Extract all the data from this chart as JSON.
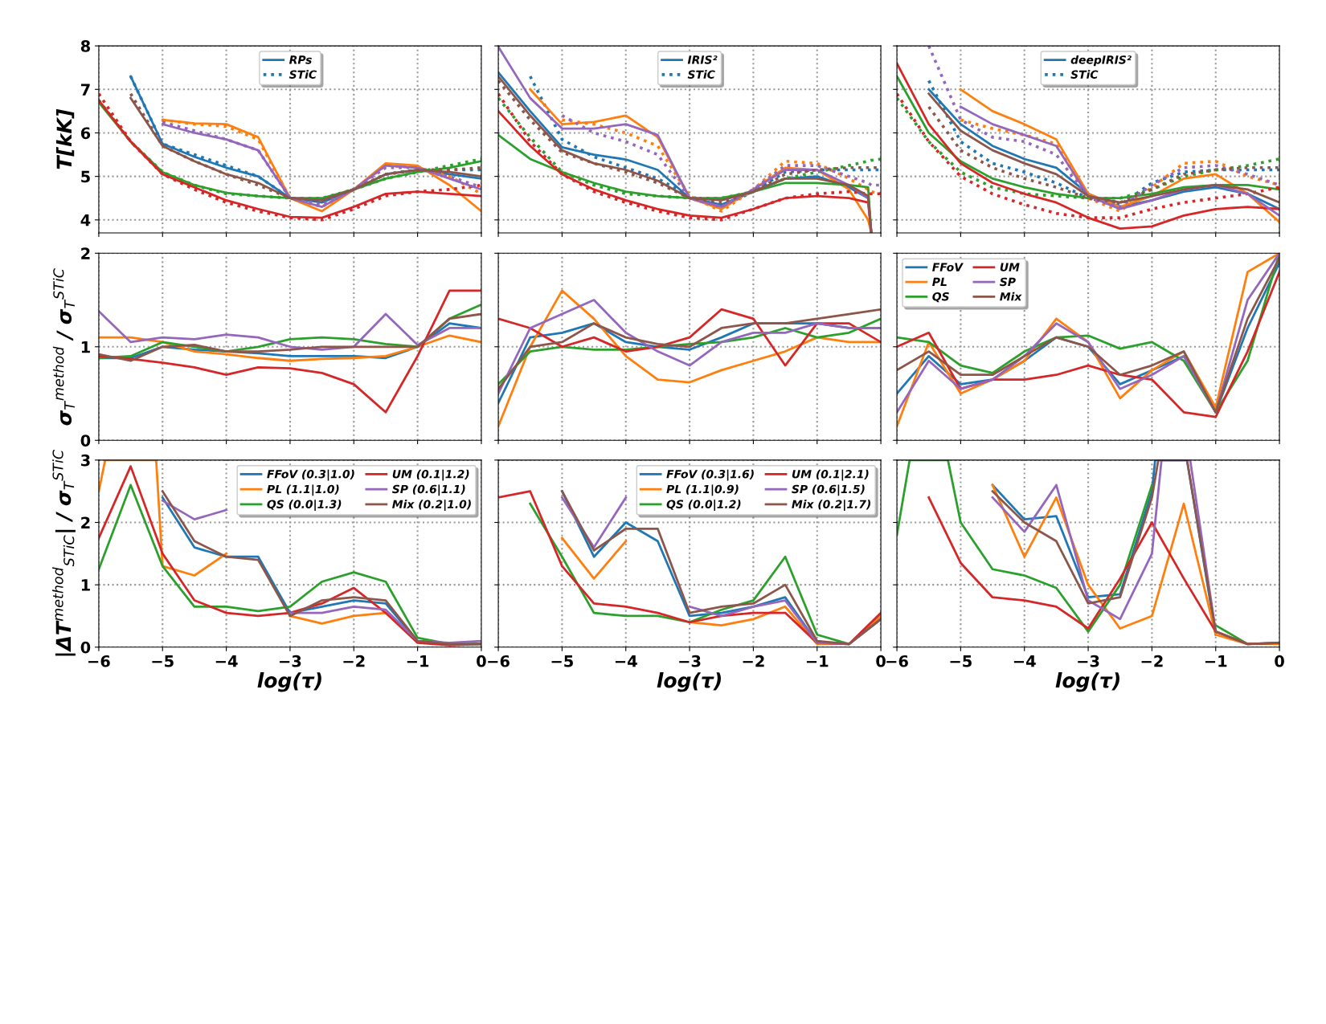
{
  "chart_data": [
    {
      "type": "line",
      "ylabel": "T[kK]",
      "x": [
        -6,
        -5.5,
        -5,
        -4.5,
        -4,
        -3.5,
        -3,
        -2.5,
        -2,
        -1.5,
        -1,
        -0.5,
        0
      ],
      "xlim": [
        -6,
        0
      ],
      "xticks": [
        -6,
        -5,
        -4,
        -3,
        -2,
        -1,
        0
      ],
      "ylim": [
        3.7,
        8
      ],
      "yticks": [
        4,
        5,
        6,
        7,
        8
      ],
      "grid": true,
      "legend": "top",
      "tick_labels": "y",
      "series": [
        {
          "name": "RPs",
          "color": "#1f77b4",
          "line_style": "solid",
          "values": [
            null,
            7.3,
            5.75,
            5.45,
            5.2,
            5.0,
            4.5,
            4.4,
            4.7,
            5.05,
            5.15,
            5.05,
            4.95
          ]
        },
        {
          "name": "STiC",
          "color": "#1f77b4",
          "line_style": "dotted",
          "values": [
            null,
            7.3,
            5.75,
            5.5,
            5.25,
            5.0,
            4.5,
            4.45,
            4.7,
            5.05,
            5.15,
            5.15,
            5.15
          ]
        },
        {
          "color": "#ff7f0e",
          "line_style": "solid",
          "values": [
            null,
            null,
            6.3,
            6.22,
            6.2,
            5.9,
            4.5,
            4.2,
            4.7,
            5.3,
            5.25,
            4.8,
            4.2
          ]
        },
        {
          "color": "#ff7f0e",
          "line_style": "dotted",
          "values": [
            null,
            null,
            6.3,
            6.2,
            6.15,
            5.85,
            4.5,
            4.3,
            4.7,
            5.25,
            5.2,
            5.0,
            4.6
          ]
        },
        {
          "color": "#2ca02c",
          "line_style": "solid",
          "values": [
            6.7,
            5.8,
            5.1,
            4.8,
            4.62,
            4.55,
            4.5,
            4.5,
            4.7,
            4.95,
            5.1,
            5.2,
            5.35
          ]
        },
        {
          "color": "#2ca02c",
          "line_style": "dotted",
          "values": [
            6.75,
            5.8,
            5.1,
            4.8,
            4.6,
            4.55,
            4.5,
            4.5,
            4.7,
            4.95,
            5.1,
            5.25,
            5.4
          ]
        },
        {
          "color": "#d62728",
          "line_style": "solid",
          "values": [
            6.75,
            5.8,
            5.05,
            4.75,
            4.45,
            4.25,
            4.07,
            4.05,
            4.3,
            4.6,
            4.65,
            4.6,
            4.55
          ]
        },
        {
          "color": "#d62728",
          "line_style": "dotted",
          "values": [
            6.9,
            5.8,
            5.05,
            4.7,
            4.4,
            4.2,
            4.05,
            4.0,
            4.25,
            4.55,
            4.65,
            4.7,
            4.8
          ]
        },
        {
          "color": "#9467bd",
          "line_style": "solid",
          "values": [
            null,
            null,
            6.2,
            6.0,
            5.85,
            5.6,
            4.5,
            4.3,
            4.7,
            5.25,
            5.2,
            4.95,
            4.7
          ]
        },
        {
          "color": "#9467bd",
          "line_style": "dotted",
          "values": [
            null,
            null,
            6.25,
            6.05,
            5.85,
            5.6,
            4.5,
            4.35,
            4.7,
            5.2,
            5.2,
            5.0,
            4.75
          ]
        },
        {
          "color": "#8c564b",
          "line_style": "solid",
          "values": [
            null,
            6.8,
            5.7,
            5.35,
            5.05,
            4.85,
            4.5,
            4.45,
            4.7,
            5.05,
            5.15,
            5.1,
            5.0
          ]
        },
        {
          "color": "#8c564b",
          "line_style": "dotted",
          "values": [
            null,
            6.9,
            5.7,
            5.35,
            5.05,
            4.8,
            4.5,
            4.45,
            4.7,
            5.05,
            5.15,
            5.15,
            5.2
          ]
        }
      ]
    },
    {
      "type": "line",
      "x": [
        -6,
        -5.5,
        -5,
        -4.5,
        -4,
        -3.5,
        -3,
        -2.5,
        -2,
        -1.5,
        -1,
        -0.5,
        -0.2,
        -0.15,
        0
      ],
      "xlim": [
        -6,
        0
      ],
      "xticks": [
        -6,
        -5,
        -4,
        -3,
        -2,
        -1,
        0
      ],
      "ylim": [
        3.7,
        8
      ],
      "yticks": [
        4,
        5,
        6,
        7,
        8
      ],
      "grid": true,
      "legend": "top",
      "tick_labels": false,
      "series": [
        {
          "name": "IRIS²",
          "color": "#1f77b4",
          "line_style": "solid",
          "values": [
            7.39,
            6.5,
            5.67,
            5.5,
            5.39,
            5.15,
            4.5,
            4.35,
            4.65,
            4.95,
            5.0,
            4.75,
            4.5,
            3.7,
            null
          ]
        },
        {
          "name": "STiC",
          "color": "#1f77b4",
          "line_style": "dotted",
          "values": [
            null,
            7.3,
            5.85,
            5.45,
            5.2,
            4.95,
            4.55,
            4.3,
            4.65,
            5.1,
            5.15,
            5.15,
            5.15,
            5.15,
            5.15
          ]
        },
        {
          "color": "#ff7f0e",
          "line_style": "solid",
          "values": [
            null,
            7.0,
            6.2,
            6.25,
            6.4,
            5.9,
            4.5,
            4.25,
            4.7,
            5.2,
            5.15,
            4.7,
            4.0,
            3.7,
            null
          ]
        },
        {
          "color": "#ff7f0e",
          "line_style": "dotted",
          "values": [
            null,
            null,
            6.3,
            6.2,
            6.0,
            5.7,
            4.55,
            4.2,
            4.7,
            5.35,
            5.3,
            4.95,
            4.7,
            4.65,
            4.6
          ]
        },
        {
          "color": "#2ca02c",
          "line_style": "solid",
          "values": [
            5.95,
            5.4,
            5.1,
            4.85,
            4.65,
            4.55,
            4.5,
            4.5,
            4.65,
            4.85,
            4.85,
            4.8,
            4.75,
            3.7,
            null
          ]
        },
        {
          "color": "#2ca02c",
          "line_style": "dotted",
          "values": [
            6.8,
            5.9,
            5.1,
            4.8,
            4.6,
            4.55,
            4.5,
            4.5,
            4.65,
            4.95,
            5.1,
            5.25,
            5.35,
            5.37,
            5.4
          ]
        },
        {
          "color": "#d62728",
          "line_style": "solid",
          "values": [
            6.5,
            5.7,
            5.05,
            4.7,
            4.45,
            4.25,
            4.1,
            4.05,
            4.25,
            4.5,
            4.55,
            4.5,
            4.4,
            3.7,
            null
          ]
        },
        {
          "color": "#d62728",
          "line_style": "dotted",
          "values": [
            6.9,
            5.8,
            5.05,
            4.65,
            4.4,
            4.2,
            4.05,
            4.0,
            4.25,
            4.5,
            4.6,
            4.65,
            4.6,
            4.6,
            4.6
          ]
        },
        {
          "color": "#9467bd",
          "line_style": "solid",
          "values": [
            7.98,
            6.8,
            6.1,
            6.1,
            6.2,
            5.95,
            4.5,
            4.3,
            4.7,
            5.15,
            5.15,
            4.8,
            4.5,
            3.7,
            null
          ]
        },
        {
          "color": "#9467bd",
          "line_style": "dotted",
          "values": [
            null,
            null,
            6.4,
            6.0,
            5.8,
            5.5,
            4.5,
            4.3,
            4.7,
            5.25,
            5.25,
            5.0,
            4.85,
            4.8,
            4.8
          ]
        },
        {
          "color": "#8c564b",
          "line_style": "solid",
          "values": [
            7.3,
            6.4,
            5.6,
            5.3,
            5.15,
            4.9,
            4.5,
            4.45,
            4.65,
            4.95,
            4.95,
            4.8,
            4.55,
            3.7,
            null
          ]
        },
        {
          "color": "#8c564b",
          "line_style": "dotted",
          "values": [
            7.2,
            6.3,
            5.55,
            5.3,
            5.1,
            4.85,
            4.5,
            4.4,
            4.65,
            5.05,
            5.15,
            5.2,
            5.2,
            5.2,
            5.2
          ]
        }
      ]
    },
    {
      "type": "line",
      "x": [
        -6,
        -5.5,
        -5,
        -4.5,
        -4,
        -3.5,
        -3,
        -2.5,
        -2,
        -1.5,
        -1,
        -0.5,
        0
      ],
      "xlim": [
        -6,
        0
      ],
      "xticks": [
        -6,
        -5,
        -4,
        -3,
        -2,
        -1,
        0
      ],
      "ylim": [
        3.7,
        8
      ],
      "yticks": [
        4,
        5,
        6,
        7,
        8
      ],
      "grid": true,
      "legend": "top",
      "tick_labels": false,
      "series": [
        {
          "name": "deepIRIS²",
          "color": "#1f77b4",
          "line_style": "solid",
          "values": [
            null,
            7.0,
            6.2,
            5.7,
            5.4,
            5.2,
            4.6,
            4.3,
            4.45,
            4.65,
            4.75,
            4.6,
            4.25
          ]
        },
        {
          "name": "STiC",
          "color": "#1f77b4",
          "line_style": "dotted",
          "values": [
            null,
            7.2,
            5.8,
            5.3,
            5.1,
            4.85,
            4.5,
            4.35,
            4.85,
            5.1,
            5.15,
            5.15,
            5.15
          ]
        },
        {
          "color": "#ff7f0e",
          "line_style": "solid",
          "values": [
            null,
            null,
            7.0,
            6.5,
            6.2,
            5.85,
            4.6,
            4.3,
            4.55,
            4.95,
            5.05,
            4.6,
            3.95
          ]
        },
        {
          "color": "#ff7f0e",
          "line_style": "dotted",
          "values": [
            null,
            null,
            6.3,
            6.1,
            5.95,
            5.75,
            4.5,
            4.2,
            4.75,
            5.3,
            5.35,
            5.0,
            4.8
          ]
        },
        {
          "color": "#2ca02c",
          "line_style": "solid",
          "values": [
            7.3,
            6.0,
            5.35,
            4.95,
            4.75,
            4.6,
            4.5,
            4.5,
            4.6,
            4.75,
            4.8,
            4.8,
            4.7
          ]
        },
        {
          "color": "#2ca02c",
          "line_style": "dotted",
          "values": [
            6.8,
            5.8,
            5.1,
            4.75,
            4.6,
            4.55,
            4.5,
            4.5,
            4.7,
            5.0,
            5.15,
            5.25,
            5.4
          ]
        },
        {
          "color": "#d62728",
          "line_style": "solid",
          "values": [
            7.6,
            6.2,
            5.3,
            4.85,
            4.6,
            4.4,
            4.05,
            3.8,
            3.85,
            4.1,
            4.25,
            4.3,
            4.25
          ]
        },
        {
          "color": "#d62728",
          "line_style": "dotted",
          "values": [
            6.9,
            5.8,
            5.0,
            4.6,
            4.35,
            4.15,
            4.05,
            4.05,
            4.25,
            4.4,
            4.5,
            4.6,
            4.75
          ]
        },
        {
          "color": "#9467bd",
          "line_style": "solid",
          "values": [
            null,
            null,
            6.6,
            6.2,
            5.95,
            5.7,
            4.55,
            4.25,
            4.45,
            4.7,
            4.8,
            4.6,
            4.1
          ]
        },
        {
          "color": "#9467bd",
          "line_style": "dotted",
          "values": [
            null,
            8.0,
            6.3,
            5.9,
            5.8,
            5.5,
            4.5,
            4.3,
            4.8,
            5.2,
            5.25,
            5.05,
            4.8
          ]
        },
        {
          "color": "#8c564b",
          "line_style": "solid",
          "values": [
            null,
            6.9,
            6.05,
            5.6,
            5.3,
            5.05,
            4.55,
            4.4,
            4.55,
            4.7,
            4.8,
            4.7,
            4.4
          ]
        },
        {
          "color": "#8c564b",
          "line_style": "dotted",
          "values": [
            null,
            6.6,
            5.6,
            5.2,
            4.95,
            4.75,
            4.5,
            4.4,
            4.7,
            5.05,
            5.15,
            5.2,
            5.2
          ]
        }
      ]
    },
    {
      "type": "line",
      "ylabel": "σ$_{T}$$^{method}$ / σ$_{T}$$^{STiC}$",
      "x": [
        -6,
        -5.5,
        -5,
        -4.5,
        -4,
        -3.5,
        -3,
        -2.5,
        -2,
        -1.5,
        -1,
        -0.5,
        0
      ],
      "xlim": [
        -6,
        0
      ],
      "xticks": [
        -6,
        -5,
        -4,
        -3,
        -2,
        -1,
        0
      ],
      "ylim": [
        0,
        2
      ],
      "yticks": [
        0,
        1,
        2
      ],
      "grid": true,
      "tick_labels": "y",
      "series": [
        {
          "color": "#1f77b4",
          "values": [
            0.88,
            0.88,
            1.0,
            0.97,
            0.95,
            0.93,
            0.9,
            0.9,
            0.9,
            0.88,
            1.0,
            1.25,
            1.2
          ]
        },
        {
          "color": "#ff7f0e",
          "values": [
            1.1,
            1.1,
            1.05,
            0.95,
            0.92,
            0.88,
            0.85,
            0.87,
            0.88,
            0.9,
            1.0,
            1.12,
            1.05
          ]
        },
        {
          "color": "#2ca02c",
          "values": [
            0.88,
            0.9,
            1.05,
            1.0,
            0.95,
            1.0,
            1.08,
            1.1,
            1.08,
            1.03,
            1.0,
            1.3,
            1.45
          ]
        },
        {
          "color": "#d62728",
          "values": [
            0.9,
            0.87,
            0.83,
            0.78,
            0.7,
            0.78,
            0.77,
            0.72,
            0.6,
            0.3,
            0.9,
            1.6,
            1.6
          ]
        },
        {
          "color": "#9467bd",
          "values": [
            1.38,
            1.05,
            1.1,
            1.08,
            1.13,
            1.1,
            1.0,
            0.97,
            1.0,
            1.35,
            1.02,
            1.2,
            1.2
          ]
        },
        {
          "color": "#8c564b",
          "values": [
            0.92,
            0.85,
            1.0,
            1.02,
            0.95,
            0.95,
            0.97,
            1.0,
            1.0,
            1.0,
            1.0,
            1.3,
            1.35
          ]
        }
      ]
    },
    {
      "type": "line",
      "x": [
        -6,
        -5.5,
        -5,
        -4.5,
        -4,
        -3.5,
        -3,
        -2.5,
        -2,
        -1.5,
        -1,
        -0.5,
        0
      ],
      "xlim": [
        -6,
        0
      ],
      "xticks": [
        -6,
        -5,
        -4,
        -3,
        -2,
        -1,
        0
      ],
      "ylim": [
        0,
        2
      ],
      "yticks": [
        0,
        1,
        2
      ],
      "grid": true,
      "tick_labels": false,
      "series": [
        {
          "color": "#1f77b4",
          "values": [
            0.4,
            1.1,
            1.15,
            1.25,
            1.05,
            1.0,
            0.97,
            1.1,
            1.25,
            1.25,
            1.25,
            1.2,
            1.2
          ]
        },
        {
          "color": "#ff7f0e",
          "values": [
            0.15,
            1.0,
            1.6,
            1.3,
            0.9,
            0.65,
            0.62,
            0.75,
            0.85,
            0.95,
            1.1,
            1.05,
            1.05
          ]
        },
        {
          "color": "#2ca02c",
          "values": [
            0.6,
            0.95,
            1.0,
            0.97,
            0.97,
            1.0,
            1.03,
            1.05,
            1.1,
            1.2,
            1.1,
            1.15,
            1.3
          ]
        },
        {
          "color": "#d62728",
          "values": [
            1.3,
            1.2,
            1.0,
            1.1,
            0.95,
            1.0,
            1.1,
            1.4,
            1.3,
            0.8,
            1.25,
            1.25,
            1.05
          ]
        },
        {
          "color": "#9467bd",
          "values": [
            0.5,
            1.2,
            1.35,
            1.5,
            1.15,
            0.95,
            0.8,
            1.05,
            1.15,
            1.15,
            1.25,
            1.2,
            1.2
          ]
        },
        {
          "color": "#8c564b",
          "values": [
            0.55,
            1.0,
            1.05,
            1.25,
            1.1,
            1.03,
            1.0,
            1.2,
            1.25,
            1.25,
            1.3,
            1.35,
            1.4
          ]
        }
      ]
    },
    {
      "type": "line",
      "x": [
        -6,
        -5.5,
        -5,
        -4.5,
        -4,
        -3.5,
        -3,
        -2.5,
        -2,
        -1.5,
        -1,
        -0.5,
        0
      ],
      "xlim": [
        -6,
        0
      ],
      "xticks": [
        -6,
        -5,
        -4,
        -3,
        -2,
        -1,
        0
      ],
      "ylim": [
        0,
        2
      ],
      "yticks": [
        0,
        1,
        2
      ],
      "grid": true,
      "legend": "top left",
      "tick_labels": false,
      "series": [
        {
          "name": "FFoV",
          "color": "#1f77b4",
          "values": [
            0.5,
            0.9,
            0.6,
            0.65,
            0.85,
            1.1,
            1.0,
            0.6,
            0.75,
            0.9,
            0.3,
            1.2,
            1.9
          ]
        },
        {
          "name": "PL",
          "color": "#ff7f0e",
          "values": [
            0.15,
            1.05,
            0.5,
            0.65,
            0.85,
            1.3,
            1.05,
            0.45,
            0.75,
            0.95,
            0.35,
            1.8,
            2.0
          ]
        },
        {
          "name": "QS",
          "color": "#2ca02c",
          "values": [
            1.1,
            1.05,
            0.8,
            0.72,
            0.95,
            1.1,
            1.12,
            0.98,
            1.05,
            0.85,
            0.3,
            0.85,
            2.0
          ]
        },
        {
          "name": "UM",
          "color": "#d62728",
          "values": [
            1.0,
            1.15,
            0.55,
            0.65,
            0.65,
            0.7,
            0.8,
            0.7,
            0.65,
            0.3,
            0.25,
            0.95,
            1.8
          ]
        },
        {
          "name": "SP",
          "color": "#9467bd",
          "values": [
            0.3,
            0.85,
            0.55,
            0.65,
            0.9,
            1.25,
            1.05,
            0.55,
            0.7,
            0.9,
            0.3,
            1.5,
            2.0
          ]
        },
        {
          "name": "Mix",
          "color": "#8c564b",
          "values": [
            0.75,
            0.95,
            0.7,
            0.7,
            0.9,
            1.1,
            1.0,
            0.7,
            0.8,
            0.95,
            0.3,
            1.3,
            1.95
          ]
        }
      ]
    },
    {
      "type": "line",
      "ylabel": "|ΔT$^{method}$$_{STiC}$| / σ$_{T}$$^{STiC}$",
      "xlabel": "log(τ)",
      "x": [
        -6,
        -5.5,
        -5,
        -4.5,
        -4,
        -3.5,
        -3,
        -2.5,
        -2,
        -1.5,
        -1,
        -0.5,
        0
      ],
      "xlim": [
        -6,
        0
      ],
      "xticks": [
        {
          "value": -6,
          "label": "−6"
        },
        {
          "value": -5,
          "label": "−5"
        },
        {
          "value": -4,
          "label": "−4"
        },
        {
          "value": -3,
          "label": "−3"
        },
        {
          "value": -2,
          "label": "−2"
        },
        {
          "value": -1,
          "label": "−1"
        },
        0
      ],
      "ylim": [
        0,
        3
      ],
      "yticks": [
        0,
        1,
        2,
        3
      ],
      "grid": true,
      "legend": "top right",
      "series": [
        {
          "name": "FFoV (0.3|1.0)",
          "color": "#1f77b4",
          "values": [
            null,
            null,
            2.4,
            1.6,
            1.45,
            1.45,
            0.55,
            0.65,
            0.75,
            0.7,
            0.1,
            0.05,
            0.05
          ]
        },
        {
          "name": "PL (1.1|1.0)",
          "color": "#ff7f0e",
          "x": [
            -6,
            -5.9,
            -5.1,
            -5,
            -4.5,
            -4,
            -3.5,
            -3,
            -2.5,
            -2,
            -1.5,
            -1
          ],
          "values": [
            2.5,
            3,
            3,
            1.3,
            1.15,
            1.5,
            null,
            0.5,
            0.38,
            0.5,
            0.55,
            0.1
          ]
        },
        {
          "name": "QS (0.0|1.3)",
          "color": "#2ca02c",
          "values": [
            1.25,
            2.6,
            1.3,
            0.65,
            0.65,
            0.58,
            0.65,
            1.05,
            1.2,
            1.05,
            0.15,
            0.05,
            0.05
          ]
        },
        {
          "name": "UM (0.1|1.2)",
          "color": "#d62728",
          "values": [
            1.75,
            2.9,
            1.5,
            0.75,
            0.55,
            0.5,
            0.55,
            0.7,
            0.95,
            0.55,
            0.07,
            0.03,
            0.05
          ]
        },
        {
          "name": "SP (0.6|1.1)",
          "color": "#9467bd",
          "values": [
            null,
            null,
            2.35,
            2.05,
            2.2,
            null,
            0.55,
            0.55,
            0.65,
            0.6,
            0.1,
            0.07,
            0.1
          ]
        },
        {
          "name": "Mix (0.2|1.0)",
          "color": "#8c564b",
          "values": [
            null,
            null,
            2.5,
            1.7,
            1.45,
            1.4,
            0.5,
            0.75,
            0.8,
            0.75,
            0.1,
            0.05,
            0.05
          ]
        }
      ]
    },
    {
      "type": "line",
      "xlabel": "log(τ)",
      "x": [
        -6,
        -5.5,
        -5,
        -4.5,
        -4,
        -3.5,
        -3,
        -2.5,
        -2,
        -1.5,
        -1,
        -0.5,
        0
      ],
      "xlim": [
        -6,
        0
      ],
      "xticks": [
        {
          "value": -6,
          "label": "−6"
        },
        {
          "value": -5,
          "label": "−5"
        },
        {
          "value": -4,
          "label": "−4"
        },
        {
          "value": -3,
          "label": "−3"
        },
        {
          "value": -2,
          "label": "−2"
        },
        {
          "value": -1,
          "label": "−1"
        },
        0
      ],
      "ylim": [
        0,
        3
      ],
      "yticks": [
        0,
        1,
        2,
        3
      ],
      "grid": true,
      "legend": "top right",
      "tick_labels": "x",
      "series": [
        {
          "name": "FFoV (0.3|1.6)",
          "color": "#1f77b4",
          "values": [
            null,
            null,
            2.5,
            1.45,
            2.0,
            1.7,
            0.5,
            0.55,
            0.65,
            0.8,
            0.07,
            0.05,
            0.5
          ]
        },
        {
          "name": "PL (1.1|0.9)",
          "color": "#ff7f0e",
          "values": [
            null,
            null,
            1.75,
            1.1,
            1.7,
            null,
            0.4,
            0.35,
            0.45,
            0.65,
            0.05,
            0.05,
            0.5
          ]
        },
        {
          "name": "QS (0.0|1.2)",
          "color": "#2ca02c",
          "values": [
            null,
            2.3,
            1.45,
            0.55,
            0.5,
            0.5,
            0.4,
            0.6,
            0.75,
            1.45,
            0.2,
            0.05,
            0.45
          ]
        },
        {
          "name": "UM (0.1|2.1)",
          "color": "#d62728",
          "values": [
            2.4,
            2.5,
            1.3,
            0.7,
            0.65,
            0.55,
            0.4,
            0.5,
            0.55,
            0.55,
            0.07,
            0.05,
            0.55
          ]
        },
        {
          "name": "SP (0.6|1.5)",
          "color": "#9467bd",
          "values": [
            null,
            null,
            2.4,
            1.6,
            2.4,
            null,
            0.65,
            0.5,
            0.65,
            0.75,
            0.07,
            0.05,
            0.45
          ]
        },
        {
          "name": "Mix (0.2|1.7)",
          "color": "#8c564b",
          "values": [
            null,
            null,
            2.5,
            1.55,
            1.9,
            1.9,
            0.55,
            0.65,
            0.7,
            1.0,
            0.1,
            0.05,
            0.45
          ]
        }
      ]
    },
    {
      "type": "line",
      "xlabel": "log(τ)",
      "x": [
        -5.5,
        -5,
        -4.5,
        -4,
        -3.5,
        -3,
        -2.5,
        -2,
        -1.5,
        -1,
        -0.5,
        0
      ],
      "xlim": [
        -6,
        0
      ],
      "xticks": [
        {
          "value": -6,
          "label": "−6"
        },
        {
          "value": -5,
          "label": "−5"
        },
        {
          "value": -4,
          "label": "−4"
        },
        {
          "value": -3,
          "label": "−3"
        },
        {
          "value": -2,
          "label": "−2"
        },
        {
          "value": -1,
          "label": "−1"
        },
        0
      ],
      "ylim": [
        0,
        3
      ],
      "yticks": [
        0,
        1,
        2,
        3
      ],
      "grid": true,
      "tick_labels": "x",
      "series": [
        {
          "color": "#1f77b4",
          "x": [
            -4.5,
            -4,
            -3.5,
            -3,
            -2.5,
            -2,
            -1.95,
            -1.45,
            -1
          ],
          "values": [
            2.6,
            2.05,
            2.1,
            0.8,
            0.85,
            2.5,
            3,
            3,
            0.2
          ]
        },
        {
          "color": "#ff7f0e",
          "values": [
            null,
            null,
            2.6,
            1.45,
            2.4,
            1.0,
            0.3,
            0.5,
            2.3,
            0.2,
            0.05,
            0.05
          ]
        },
        {
          "color": "#2ca02c",
          "x": [
            -6,
            -5.8,
            -5.2,
            -5,
            -4.5,
            -4,
            -3.5,
            -3,
            -2.5,
            -2,
            -1.5,
            -1,
            -0.5,
            0
          ],
          "values": [
            1.8,
            3,
            3,
            2.0,
            1.25,
            1.15,
            0.95,
            0.25,
            1.0,
            2.6,
            null,
            0.35,
            0.05,
            0.07
          ]
        },
        {
          "color": "#d62728",
          "values": [
            2.4,
            1.35,
            0.8,
            0.75,
            0.65,
            0.3,
            1.1,
            2.0,
            1.1,
            0.25,
            0.05,
            0.07
          ]
        },
        {
          "color": "#9467bd",
          "x": [
            -4.5,
            -4,
            -3.5,
            -3,
            -2.5,
            -2,
            -1.85,
            -1.4,
            -1
          ],
          "values": [
            2.4,
            1.85,
            2.6,
            0.75,
            0.45,
            1.5,
            3,
            3,
            0.25
          ]
        },
        {
          "color": "#8c564b",
          "x": [
            -4.5,
            -4,
            -3.5,
            -3,
            -2.5,
            -2,
            -1.9,
            -1.45,
            -1,
            -0.5,
            0
          ],
          "values": [
            2.5,
            2.0,
            1.7,
            0.7,
            0.8,
            2.4,
            3,
            3,
            0.25,
            0.05,
            0.07
          ]
        }
      ]
    }
  ]
}
